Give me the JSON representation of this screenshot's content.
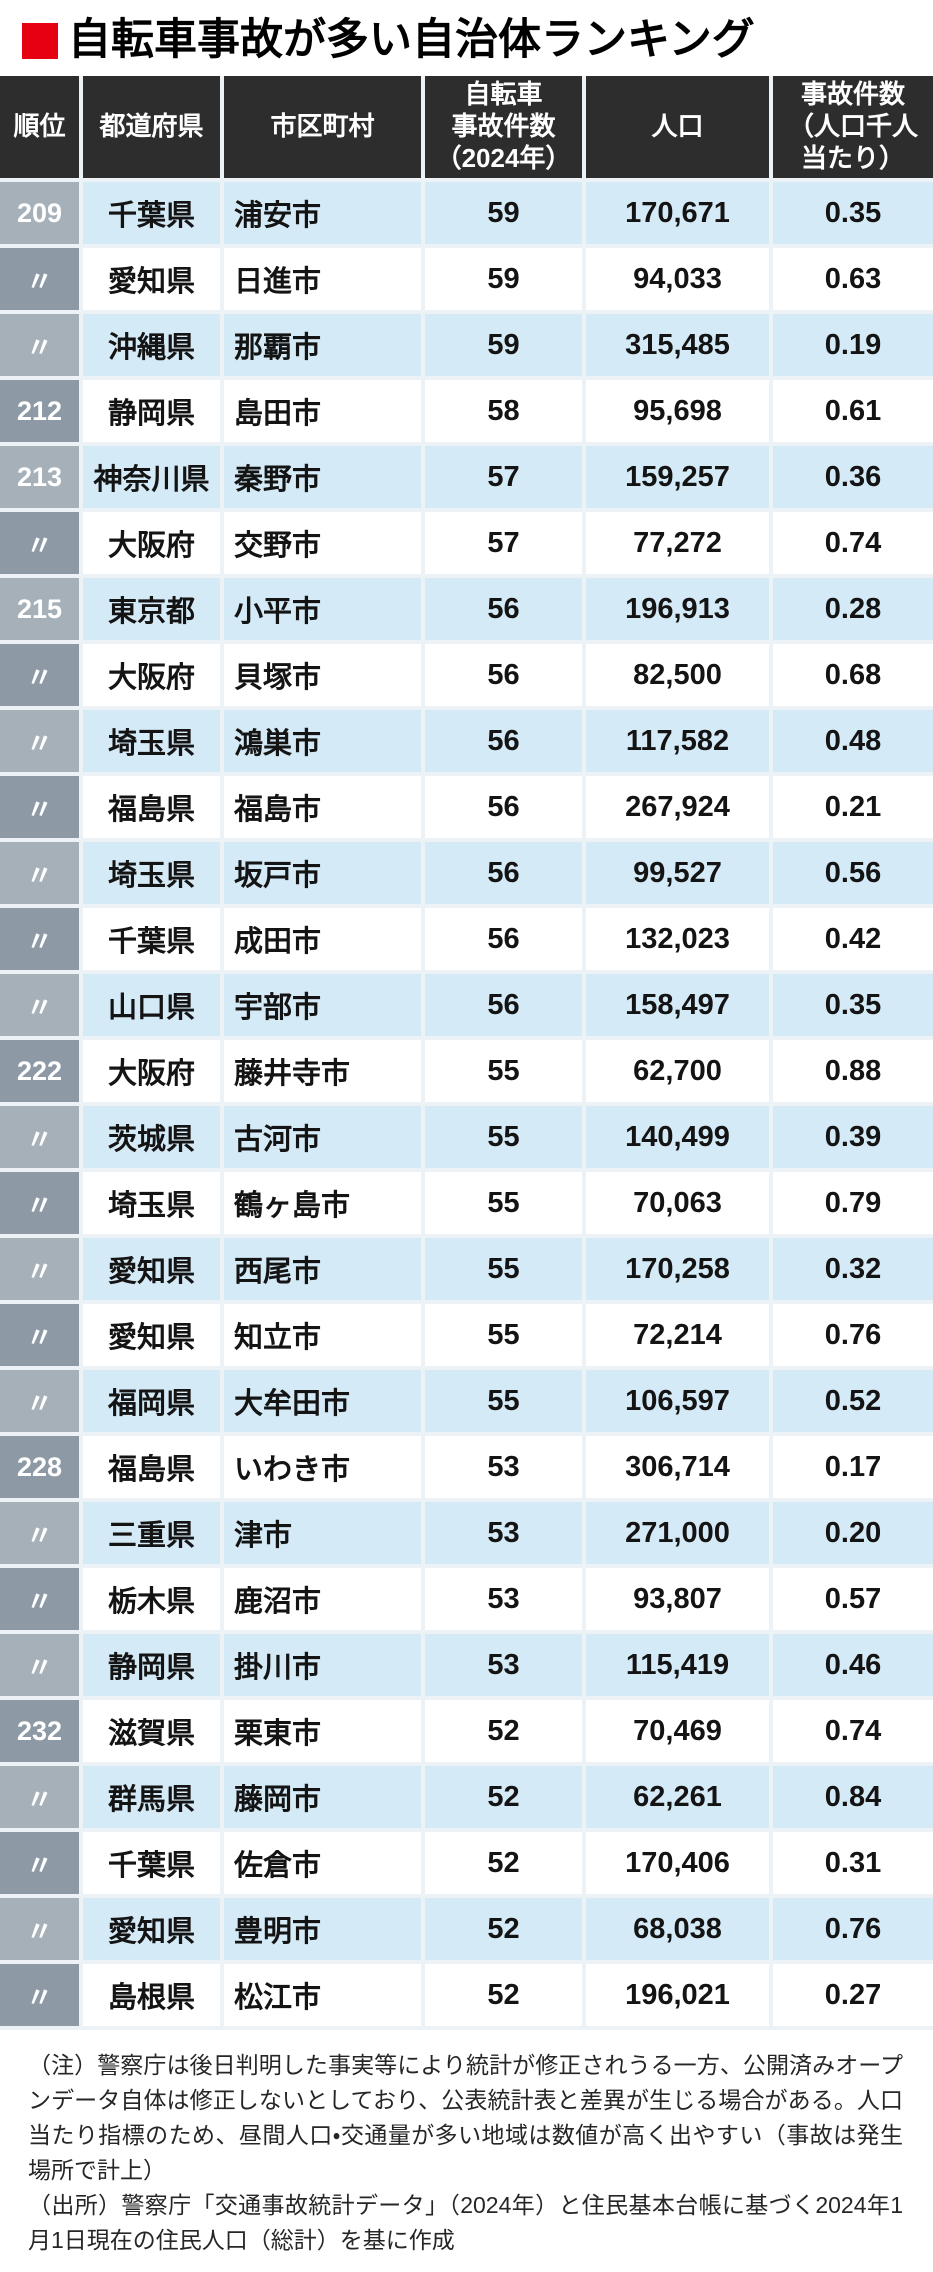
{
  "title": {
    "text": "自転車事故が多い自治体ランキング"
  },
  "colors": {
    "accent": "#e60012",
    "header-bg": "#2d2d2d",
    "header-text": "#ffffff",
    "row-blue": "#d5eaf7",
    "row-white": "#ffffff",
    "rank-light": "#a6b0b9",
    "rank-dark": "#8d9aa6",
    "grid": "#edf2f6",
    "body-text": "#141414",
    "note-text": "#262626"
  },
  "chart_data": {
    "type": "table",
    "title": "自転車事故が多い自治体ランキング",
    "columns": [
      {
        "key": "rank",
        "label": "順位"
      },
      {
        "key": "pref",
        "label": "都道府県"
      },
      {
        "key": "city",
        "label": "市区町村"
      },
      {
        "key": "accidents",
        "label": "自転車\n事故件数\n（2024年）"
      },
      {
        "key": "population",
        "label": "人口"
      },
      {
        "key": "rate",
        "label": "事故件数\n（人口千人\n当たり）"
      }
    ],
    "ditto_mark": "〃",
    "rows": [
      {
        "rank": "209",
        "pref": "千葉県",
        "city": "浦安市",
        "accidents": "59",
        "population": "170,671",
        "rate": "0.35"
      },
      {
        "rank": "〃",
        "pref": "愛知県",
        "city": "日進市",
        "accidents": "59",
        "population": "94,033",
        "rate": "0.63"
      },
      {
        "rank": "〃",
        "pref": "沖縄県",
        "city": "那覇市",
        "accidents": "59",
        "population": "315,485",
        "rate": "0.19"
      },
      {
        "rank": "212",
        "pref": "静岡県",
        "city": "島田市",
        "accidents": "58",
        "population": "95,698",
        "rate": "0.61"
      },
      {
        "rank": "213",
        "pref": "神奈川県",
        "city": "秦野市",
        "accidents": "57",
        "population": "159,257",
        "rate": "0.36"
      },
      {
        "rank": "〃",
        "pref": "大阪府",
        "city": "交野市",
        "accidents": "57",
        "population": "77,272",
        "rate": "0.74"
      },
      {
        "rank": "215",
        "pref": "東京都",
        "city": "小平市",
        "accidents": "56",
        "population": "196,913",
        "rate": "0.28"
      },
      {
        "rank": "〃",
        "pref": "大阪府",
        "city": "貝塚市",
        "accidents": "56",
        "population": "82,500",
        "rate": "0.68"
      },
      {
        "rank": "〃",
        "pref": "埼玉県",
        "city": "鴻巣市",
        "accidents": "56",
        "population": "117,582",
        "rate": "0.48"
      },
      {
        "rank": "〃",
        "pref": "福島県",
        "city": "福島市",
        "accidents": "56",
        "population": "267,924",
        "rate": "0.21"
      },
      {
        "rank": "〃",
        "pref": "埼玉県",
        "city": "坂戸市",
        "accidents": "56",
        "population": "99,527",
        "rate": "0.56"
      },
      {
        "rank": "〃",
        "pref": "千葉県",
        "city": "成田市",
        "accidents": "56",
        "population": "132,023",
        "rate": "0.42"
      },
      {
        "rank": "〃",
        "pref": "山口県",
        "city": "宇部市",
        "accidents": "56",
        "population": "158,497",
        "rate": "0.35"
      },
      {
        "rank": "222",
        "pref": "大阪府",
        "city": "藤井寺市",
        "accidents": "55",
        "population": "62,700",
        "rate": "0.88"
      },
      {
        "rank": "〃",
        "pref": "茨城県",
        "city": "古河市",
        "accidents": "55",
        "population": "140,499",
        "rate": "0.39"
      },
      {
        "rank": "〃",
        "pref": "埼玉県",
        "city": "鶴ヶ島市",
        "accidents": "55",
        "population": "70,063",
        "rate": "0.79"
      },
      {
        "rank": "〃",
        "pref": "愛知県",
        "city": "西尾市",
        "accidents": "55",
        "population": "170,258",
        "rate": "0.32"
      },
      {
        "rank": "〃",
        "pref": "愛知県",
        "city": "知立市",
        "accidents": "55",
        "population": "72,214",
        "rate": "0.76"
      },
      {
        "rank": "〃",
        "pref": "福岡県",
        "city": "大牟田市",
        "accidents": "55",
        "population": "106,597",
        "rate": "0.52"
      },
      {
        "rank": "228",
        "pref": "福島県",
        "city": "いわき市",
        "accidents": "53",
        "population": "306,714",
        "rate": "0.17"
      },
      {
        "rank": "〃",
        "pref": "三重県",
        "city": "津市",
        "accidents": "53",
        "population": "271,000",
        "rate": "0.20"
      },
      {
        "rank": "〃",
        "pref": "栃木県",
        "city": "鹿沼市",
        "accidents": "53",
        "population": "93,807",
        "rate": "0.57"
      },
      {
        "rank": "〃",
        "pref": "静岡県",
        "city": "掛川市",
        "accidents": "53",
        "population": "115,419",
        "rate": "0.46"
      },
      {
        "rank": "232",
        "pref": "滋賀県",
        "city": "栗東市",
        "accidents": "52",
        "population": "70,469",
        "rate": "0.74"
      },
      {
        "rank": "〃",
        "pref": "群馬県",
        "city": "藤岡市",
        "accidents": "52",
        "population": "62,261",
        "rate": "0.84"
      },
      {
        "rank": "〃",
        "pref": "千葉県",
        "city": "佐倉市",
        "accidents": "52",
        "population": "170,406",
        "rate": "0.31"
      },
      {
        "rank": "〃",
        "pref": "愛知県",
        "city": "豊明市",
        "accidents": "52",
        "population": "68,038",
        "rate": "0.76"
      },
      {
        "rank": "〃",
        "pref": "島根県",
        "city": "松江市",
        "accidents": "52",
        "population": "196,021",
        "rate": "0.27"
      }
    ]
  },
  "footer": {
    "note": "（注）警察庁は後日判明した事実等により統計が修正されうる一方、公開済みオープンデータ自体は修正しないとしており、公表統計表と差異が生じる場合がある。人口当たり指標のため、昼間人口・交通量が多い地域は数値が高く出やすい（事故は発生場所で計上）",
    "source": "（出所）警察庁「交通事故統計データ」（2024年）と住民基本台帳に基づく2024年1月1日現在の住民人口（総計）を基に作成"
  }
}
